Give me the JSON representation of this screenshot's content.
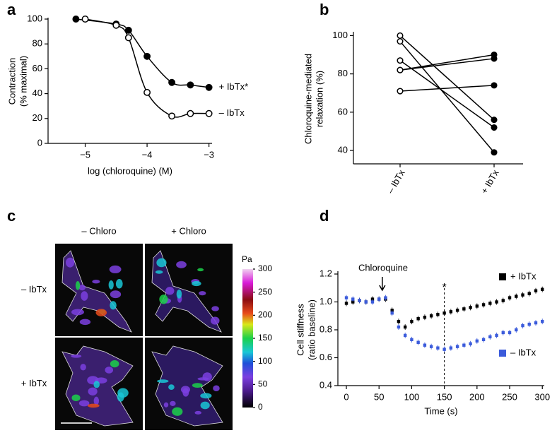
{
  "chart_data": [
    {
      "type": "line",
      "panel": "a",
      "xlabel": "log (chloroquine) (M)",
      "ylabel": [
        "Contraction",
        "(% maximal)"
      ],
      "xlim": [
        -5.6,
        -2.95
      ],
      "xticks": [
        {
          "value": -5,
          "label": "−5"
        },
        {
          "value": -4,
          "label": "−4"
        },
        {
          "value": -3,
          "label": "−3"
        }
      ],
      "ylim": [
        0,
        100
      ],
      "yticks": [
        0,
        20,
        40,
        60,
        80,
        100
      ],
      "series": [
        {
          "name": "+ IbTx*",
          "color": "#000000",
          "fill": "filled",
          "x": [
            -5.15,
            -4.5,
            -4.3,
            -4.0,
            -3.6,
            -3.3,
            -3.0
          ],
          "values": [
            100,
            96,
            91,
            70,
            49,
            47,
            45
          ]
        },
        {
          "name": "– IbTx",
          "color": "#000000",
          "fill": "open",
          "x": [
            -5.0,
            -4.5,
            -4.3,
            -4.0,
            -3.6,
            -3.3,
            -3.0
          ],
          "values": [
            100,
            95,
            85,
            41,
            22,
            24,
            24
          ]
        }
      ]
    },
    {
      "type": "paired",
      "panel": "b",
      "ylabel": [
        "Chloroquine-mediated",
        "relaxation (%)"
      ],
      "categories": [
        "– IbTx",
        "+ IbTx"
      ],
      "ylim": [
        33,
        102
      ],
      "yticks": [
        40,
        60,
        80,
        100
      ],
      "series": [
        {
          "color": "#000000",
          "values": [
            100,
            56
          ]
        },
        {
          "color": "#000000",
          "values": [
            97,
            39
          ]
        },
        {
          "color": "#000000",
          "values": [
            87,
            52
          ]
        },
        {
          "color": "#000000",
          "values": [
            82,
            90
          ]
        },
        {
          "color": "#000000",
          "values": [
            82,
            88
          ]
        },
        {
          "color": "#000000",
          "values": [
            71,
            74
          ]
        }
      ]
    },
    {
      "type": "image",
      "panel": "c",
      "columns": [
        "– Chloro",
        "+ Chloro"
      ],
      "rows": [
        "– IbTx",
        "+ IbTx"
      ],
      "colorbar_label": "Pa",
      "ylim": [
        0,
        300
      ],
      "yticks": [
        0,
        50,
        100,
        150,
        200,
        250,
        300
      ]
    },
    {
      "type": "scatter",
      "panel": "d",
      "xlabel": "Time (s)",
      "ylabel": [
        "Cell stiffness",
        "(ratio baseline)"
      ],
      "annotations": [
        "Chloroquine",
        "*"
      ],
      "arrow_x": 55,
      "vline": 150,
      "xlim": [
        -13,
        303
      ],
      "xticks": [
        0,
        50,
        100,
        150,
        200,
        250,
        300
      ],
      "ylim": [
        0.4,
        1.2
      ],
      "yticks": [
        0.4,
        0.6,
        0.8,
        {
          "value": 1.0,
          "label": "1.0"
        },
        1.2
      ],
      "x": [
        0,
        10,
        20,
        30,
        40,
        50,
        60,
        70,
        80,
        90,
        100,
        110,
        120,
        130,
        140,
        150,
        160,
        170,
        180,
        190,
        200,
        210,
        220,
        230,
        240,
        250,
        260,
        270,
        280,
        290,
        300
      ],
      "series": [
        {
          "name": "+ IbTx",
          "color": "#000000",
          "values": [
            0.99,
            1.0,
            1.01,
            1.0,
            1.02,
            1.02,
            1.02,
            0.94,
            0.86,
            0.82,
            0.86,
            0.88,
            0.89,
            0.9,
            0.91,
            0.92,
            0.93,
            0.94,
            0.95,
            0.96,
            0.97,
            0.98,
            0.99,
            1.0,
            1.01,
            1.03,
            1.04,
            1.05,
            1.06,
            1.08,
            1.09
          ]
        },
        {
          "name": "– IbTx",
          "color": "#3b5bdb",
          "values": [
            1.03,
            1.02,
            1.01,
            1.0,
            1.0,
            1.02,
            1.03,
            0.92,
            0.82,
            0.76,
            0.73,
            0.71,
            0.69,
            0.68,
            0.67,
            0.66,
            0.67,
            0.68,
            0.69,
            0.7,
            0.72,
            0.73,
            0.75,
            0.76,
            0.78,
            0.78,
            0.8,
            0.83,
            0.84,
            0.85,
            0.86
          ]
        }
      ]
    }
  ]
}
